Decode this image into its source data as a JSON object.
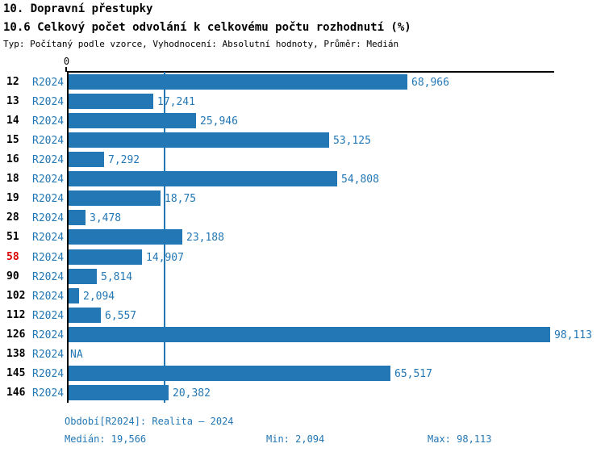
{
  "header": {
    "title": "10. Dopravní přestupky",
    "subtitle": "10.6 Celkový počet odvolání k celkovému počtu rozhodnutí (%)",
    "meta": "Typ: Počítaný podle vzorce, Vyhodnocení: Absolutní hodnoty, Průměr: Medián"
  },
  "chart_data": {
    "type": "bar",
    "orientation": "horizontal",
    "title": "10.6 Celkový počet odvolání k celkovému počtu rozhodnutí (%)",
    "axis_zero_label": "0",
    "xlim": [
      0,
      98.113
    ],
    "grid": false,
    "median_value": 19.566,
    "highlight_category": "58",
    "categories": [
      "12",
      "13",
      "14",
      "15",
      "16",
      "18",
      "19",
      "28",
      "51",
      "58",
      "90",
      "102",
      "112",
      "126",
      "138",
      "145",
      "146"
    ],
    "series": [
      {
        "name": "R2024",
        "values": [
          68.966,
          17.241,
          25.946,
          53.125,
          7.292,
          54.808,
          18.75,
          3.478,
          23.188,
          14.907,
          5.814,
          2.094,
          6.557,
          98.113,
          null,
          65.517,
          20.382
        ],
        "labels": [
          "68,966",
          "17,241",
          "25,946",
          "53,125",
          "7,292",
          "54,808",
          "18,75",
          "3,478",
          "23,188",
          "14,907",
          "5,814",
          "2,094",
          "6,557",
          "98,113",
          "NA",
          "65,517",
          "20,382"
        ]
      }
    ]
  },
  "footer": {
    "period": "Období[R2024]: Realita – 2024",
    "median": "Medián: 19,566",
    "min": "Min: 2,094",
    "max": "Max: 98,113"
  },
  "colors": {
    "bar_blue": "#2377b5",
    "text_blue": "#2377b5",
    "highlight_red": "#dd0000",
    "axis_black": "#000000",
    "background": "#ffffff"
  }
}
